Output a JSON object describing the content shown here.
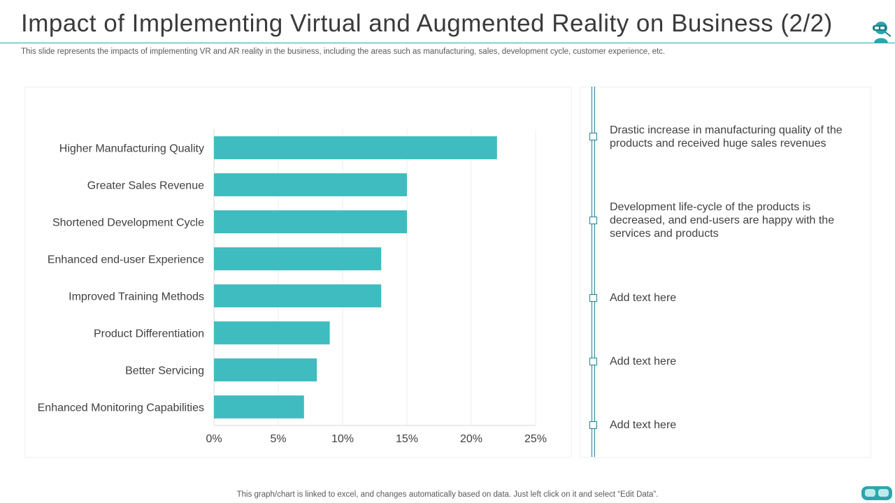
{
  "slide": {
    "title": "Impact of Implementing Virtual and Augmented Reality on Business (2/2)",
    "subtitle": "This slide represents the impacts of implementing VR and AR reality in the business, including the areas such as manufacturing, sales, development cycle, customer experience, etc.",
    "footer": "This graph/chart is linked to excel,  and changes automatically based on data. Just left click on it and select “Edit Data”."
  },
  "icons": {
    "brand": "vr-headset-person-icon",
    "footer": "vr-goggles-icon"
  },
  "colors": {
    "bar": "#3fbcbf",
    "accent": "#2aa6ad",
    "timeline": "#2e7a9a",
    "grid": "#ececec"
  },
  "chart_data": {
    "type": "bar",
    "orientation": "horizontal",
    "categories": [
      "Higher Manufacturing Quality",
      "Greater Sales Revenue",
      "Shortened Development Cycle",
      "Enhanced end-user Experience",
      "Improved Training Methods",
      "Product Differentiation",
      "Better Servicing",
      "Enhanced Monitoring Capabilities"
    ],
    "values": [
      22,
      15,
      15,
      13,
      13,
      9,
      8,
      7
    ],
    "xlim": [
      0,
      25
    ],
    "xticks": [
      0,
      5,
      10,
      15,
      20,
      25
    ],
    "xtick_labels": [
      "0%",
      "5%",
      "10%",
      "15%",
      "20%",
      "25%"
    ],
    "title": "",
    "xlabel": "",
    "ylabel": "",
    "grid": "vertical",
    "legend": "none"
  },
  "notes": [
    {
      "text": "Drastic increase in manufacturing  quality  of the products and received huge sales revenues"
    },
    {
      "text": "Development life-cycle  of the products is decreased, and end-users  are happy with the services and products"
    },
    {
      "text": "Add text here"
    },
    {
      "text": "Add text here"
    },
    {
      "text": "Add text here"
    }
  ]
}
